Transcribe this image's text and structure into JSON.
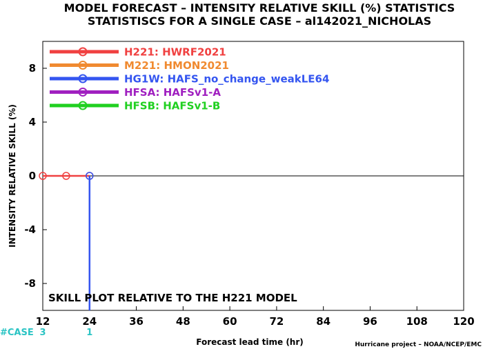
{
  "chart_data": {
    "type": "line",
    "title": "MODEL FORECAST – INTENSITY RELATIVE SKILL (%) STATISTICS",
    "subtitle": "STATISTISCS FOR A SINGLE CASE – al142021_NICHOLAS",
    "xlabel": "Forecast lead time (hr)",
    "ylabel": "INTENSITY RELATIVE SKILL (%)",
    "xlim": [
      12,
      120
    ],
    "ylim": [
      -10,
      10
    ],
    "x_ticks": [
      12,
      24,
      36,
      48,
      60,
      72,
      84,
      96,
      108,
      120
    ],
    "y_ticks": [
      8,
      4,
      0,
      -4,
      -8
    ],
    "grid": false,
    "legend_position": "top-left",
    "annotation": "SKILL PLOT RELATIVE TO THE H221 MODEL",
    "credit": "Hurricane project – NOAA/NCEP/EMC",
    "case_label": "#CASE",
    "case_counts": [
      {
        "x": 12,
        "count": "3"
      },
      {
        "x": 24,
        "count": "1"
      }
    ],
    "series": [
      {
        "name": "H221: HWRF2021",
        "color": "#f04040",
        "x": [
          12,
          18,
          24
        ],
        "y": [
          0,
          0,
          0
        ]
      },
      {
        "name": "M221: HMON2021",
        "color": "#f08a30",
        "x": [],
        "y": []
      },
      {
        "name": "HG1W: HAFS_no_change_weakLE64",
        "color": "#3455f0",
        "x": [
          24,
          24
        ],
        "y": [
          0,
          -10
        ]
      },
      {
        "name": "HFSA: HAFSv1-A",
        "color": "#a020c0",
        "x": [],
        "y": []
      },
      {
        "name": "HFSB: HAFSv1-B",
        "color": "#20d020",
        "x": [],
        "y": []
      }
    ]
  }
}
